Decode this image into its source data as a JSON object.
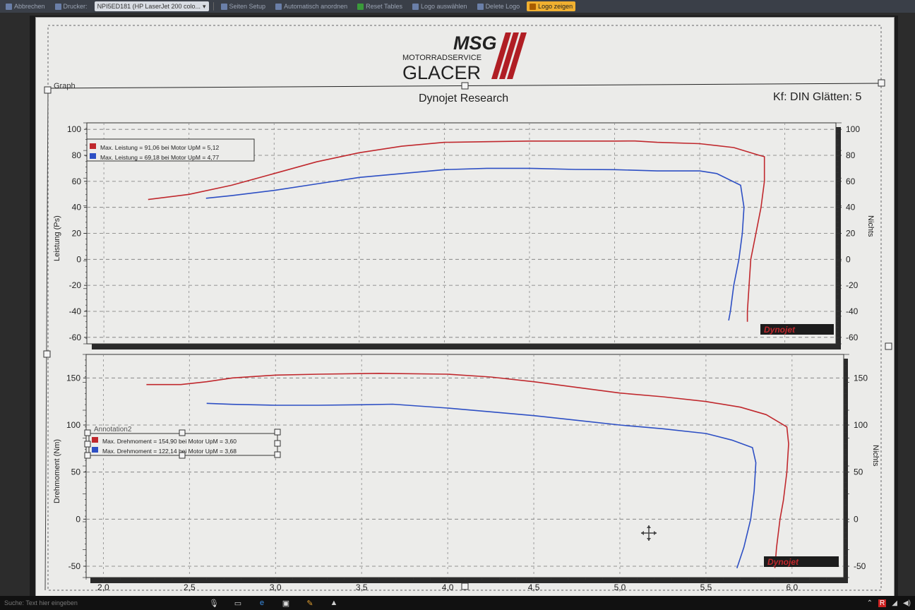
{
  "toolbar": {
    "items": [
      {
        "label": "Abbrechen",
        "icon": "cancel-icon"
      },
      {
        "label": "Drucker:",
        "icon": "printer-icon"
      },
      {
        "label": "NPI5ED181 (HP LaserJet 200 colo...",
        "icon": ""
      },
      {
        "label": "Seiten Setup",
        "icon": "page-setup-icon"
      },
      {
        "label": "Automatisch anordnen",
        "icon": "arrange-icon"
      },
      {
        "label": "Reset Tables",
        "icon": "reset-icon"
      },
      {
        "label": "Logo auswählen",
        "icon": "logo-select-icon"
      },
      {
        "label": "Delete Logo",
        "icon": "delete-icon"
      },
      {
        "label": "Logo zeigen",
        "icon": "logo-show-icon"
      }
    ]
  },
  "header": {
    "logo_msg": "MSG",
    "logo_sub": "MOTORRADSERVICE",
    "logo_name": "GLACER",
    "graph_label": "Graph",
    "title": "Dynojet Research",
    "kf_text": "Kf: DIN Glätten: 5",
    "brand": "Dynojet"
  },
  "chart_data": [
    {
      "type": "line",
      "ylabel": "Leistung (Ps)",
      "y2label": "Nichts",
      "ylim": [
        -65,
        105
      ],
      "y_ticks": [
        "100",
        "80",
        "60",
        "40",
        "20",
        "0",
        "-20",
        "-40",
        "-60"
      ],
      "y2_ticks": [
        "100",
        "80",
        "60",
        "40",
        "20",
        "0",
        "-20",
        "-40",
        "-60"
      ],
      "legend": [
        {
          "text": "Max. Leistung = 91,06 bei Motor UpM = 5,12",
          "color": "#c0282d"
        },
        {
          "text": "Max. Leistung = 69,18 bei Motor UpM = 4,77",
          "color": "#2d4fc4"
        }
      ],
      "series": [
        {
          "color": "#c0282d",
          "points": [
            [
              2.26,
              46
            ],
            [
              2.5,
              50
            ],
            [
              2.75,
              57
            ],
            [
              3.0,
              66
            ],
            [
              3.25,
              75
            ],
            [
              3.5,
              82
            ],
            [
              3.75,
              87
            ],
            [
              4.0,
              90
            ],
            [
              4.25,
              90.5
            ],
            [
              4.5,
              91
            ],
            [
              4.75,
              91
            ],
            [
              5.0,
              91
            ],
            [
              5.12,
              91.06
            ],
            [
              5.25,
              90
            ],
            [
              5.5,
              89
            ],
            [
              5.7,
              86
            ],
            [
              5.85,
              80
            ],
            [
              5.88,
              79
            ],
            [
              5.88,
              60
            ],
            [
              5.86,
              40
            ],
            [
              5.83,
              20
            ],
            [
              5.8,
              0
            ],
            [
              5.79,
              -20
            ],
            [
              5.78,
              -40
            ],
            [
              5.78,
              -48
            ]
          ]
        },
        {
          "color": "#2d4fc4",
          "points": [
            [
              2.6,
              47
            ],
            [
              2.75,
              49
            ],
            [
              3.0,
              53
            ],
            [
              3.25,
              58
            ],
            [
              3.5,
              63
            ],
            [
              3.75,
              66
            ],
            [
              4.0,
              69
            ],
            [
              4.25,
              70
            ],
            [
              4.5,
              70
            ],
            [
              4.77,
              69.18
            ],
            [
              5.0,
              69
            ],
            [
              5.25,
              68
            ],
            [
              5.5,
              68
            ],
            [
              5.6,
              66
            ],
            [
              5.74,
              57
            ],
            [
              5.76,
              40
            ],
            [
              5.75,
              20
            ],
            [
              5.73,
              0
            ],
            [
              5.7,
              -20
            ],
            [
              5.68,
              -40
            ],
            [
              5.67,
              -47
            ]
          ]
        }
      ]
    },
    {
      "type": "line",
      "ylabel": "Drehmoment (Nm)",
      "y2label": "Nichts",
      "ylim": [
        -62,
        175
      ],
      "y_ticks": [
        "150",
        "100",
        "50",
        "0",
        "-50"
      ],
      "y2_ticks": [
        "150",
        "100",
        "50",
        "0",
        "-50"
      ],
      "x_ticks": [
        "2,0",
        "2,5",
        "3,0",
        "3,5",
        "4,0",
        "4,5",
        "5,0",
        "5,5",
        "6,0"
      ],
      "xlim": [
        1.9,
        6.3
      ],
      "annotation": "Annotation2",
      "legend": [
        {
          "text": "Max. Drehmoment = 154,90 bei Motor UpM = 3,60",
          "color": "#c0282d"
        },
        {
          "text": "Max. Drehmoment = 122,14 bei Motor UpM = 3,68",
          "color": "#2d4fc4"
        }
      ],
      "series": [
        {
          "color": "#c0282d",
          "points": [
            [
              2.25,
              143
            ],
            [
              2.45,
              143
            ],
            [
              2.6,
              146
            ],
            [
              2.75,
              150
            ],
            [
              3.0,
              153
            ],
            [
              3.25,
              154
            ],
            [
              3.6,
              154.9
            ],
            [
              4.0,
              154
            ],
            [
              4.25,
              151
            ],
            [
              4.5,
              146
            ],
            [
              4.75,
              140
            ],
            [
              5.0,
              134
            ],
            [
              5.25,
              130
            ],
            [
              5.5,
              125
            ],
            [
              5.7,
              119
            ],
            [
              5.85,
              111
            ],
            [
              5.97,
              98
            ],
            [
              5.98,
              80
            ],
            [
              5.97,
              50
            ],
            [
              5.95,
              20
            ],
            [
              5.93,
              0
            ],
            [
              5.91,
              -30
            ],
            [
              5.9,
              -52
            ]
          ]
        },
        {
          "color": "#2d4fc4",
          "points": [
            [
              2.6,
              123
            ],
            [
              2.75,
              122
            ],
            [
              3.0,
              121
            ],
            [
              3.25,
              121
            ],
            [
              3.5,
              121.5
            ],
            [
              3.68,
              122.14
            ],
            [
              4.0,
              118
            ],
            [
              4.25,
              114
            ],
            [
              4.5,
              110
            ],
            [
              4.75,
              105
            ],
            [
              5.0,
              100
            ],
            [
              5.25,
              96
            ],
            [
              5.5,
              91
            ],
            [
              5.65,
              84
            ],
            [
              5.77,
              76
            ],
            [
              5.79,
              60
            ],
            [
              5.78,
              30
            ],
            [
              5.76,
              0
            ],
            [
              5.72,
              -30
            ],
            [
              5.68,
              -52
            ]
          ]
        }
      ]
    }
  ],
  "taskbar": {
    "search_text": "Suche: Text hier eingeben"
  }
}
